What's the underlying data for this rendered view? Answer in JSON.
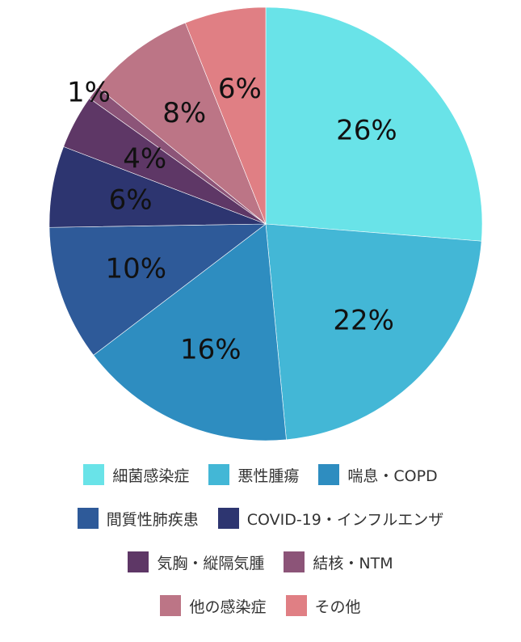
{
  "chart_data": {
    "type": "pie",
    "title": "",
    "categories": [
      "細菌感染症",
      "悪性腫瘍",
      "喘息・COPD",
      "間質性肺疾患",
      "COVID-19・インフルエンザ",
      "気胸・縦隔気腫",
      "結核・NTM",
      "他の感染症",
      "その他"
    ],
    "values": [
      26,
      22,
      16,
      10,
      6,
      4,
      1,
      8,
      6
    ],
    "value_labels": [
      "26%",
      "22%",
      "16%",
      "10%",
      "6%",
      "4%",
      "1%",
      "8%",
      "6%"
    ],
    "colors": [
      "#69E3E8",
      "#43B7D6",
      "#2E8DC0",
      "#2E5A99",
      "#2D3570",
      "#5E3766",
      "#8C5478",
      "#BC7586",
      "#E07F84"
    ],
    "legend_placement": "bottom"
  },
  "legend": {
    "rows": [
      [
        {
          "label": "細菌感染症",
          "color": "#69E3E8"
        },
        {
          "label": "悪性腫瘍",
          "color": "#43B7D6"
        },
        {
          "label": "喘息・COPD",
          "color": "#2E8DC0"
        }
      ],
      [
        {
          "label": "間質性肺疾患",
          "color": "#2E5A99"
        },
        {
          "label": "COVID-19・インフルエンザ",
          "color": "#2D3570"
        }
      ],
      [
        {
          "label": "気胸・縦隔気腫",
          "color": "#5E3766"
        },
        {
          "label": "結核・NTM",
          "color": "#8C5478"
        }
      ],
      [
        {
          "label": "他の感染症",
          "color": "#BC7586"
        },
        {
          "label": "その他",
          "color": "#E07F84"
        }
      ]
    ]
  }
}
